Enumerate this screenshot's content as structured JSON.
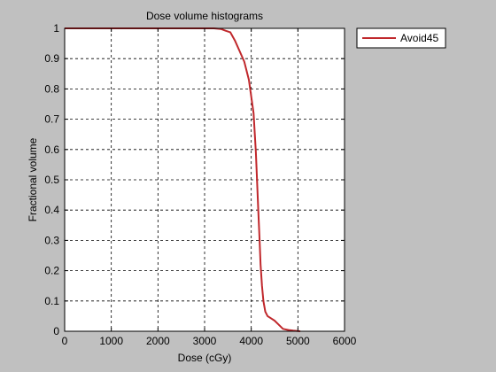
{
  "chart_data": {
    "type": "line",
    "title": "Dose volume histograms",
    "xlabel": "Dose (cGy)",
    "ylabel": "Fractional volume",
    "xlim": [
      0,
      6000
    ],
    "ylim": [
      0,
      1
    ],
    "xticks": [
      0,
      1000,
      2000,
      3000,
      4000,
      5000,
      6000
    ],
    "yticks": [
      0,
      0.1,
      0.2,
      0.3,
      0.4,
      0.5,
      0.6,
      0.7,
      0.8,
      0.9,
      1
    ],
    "grid": true,
    "legend_position": "outside-top-right",
    "series": [
      {
        "name": "Avoid45",
        "color": "#c0282c",
        "x": [
          0,
          3200,
          3350,
          3450,
          3550,
          3650,
          3750,
          3850,
          3950,
          4050,
          4100,
          4150,
          4180,
          4200,
          4230,
          4260,
          4300,
          4350,
          4400,
          4500,
          4600,
          4680,
          4800,
          4900,
          5000,
          5050
        ],
        "y": [
          1,
          1,
          0.998,
          0.992,
          0.987,
          0.96,
          0.925,
          0.89,
          0.83,
          0.72,
          0.59,
          0.4,
          0.3,
          0.22,
          0.15,
          0.1,
          0.065,
          0.05,
          0.045,
          0.035,
          0.02,
          0.008,
          0.004,
          0.002,
          0.001,
          0
        ]
      }
    ]
  }
}
